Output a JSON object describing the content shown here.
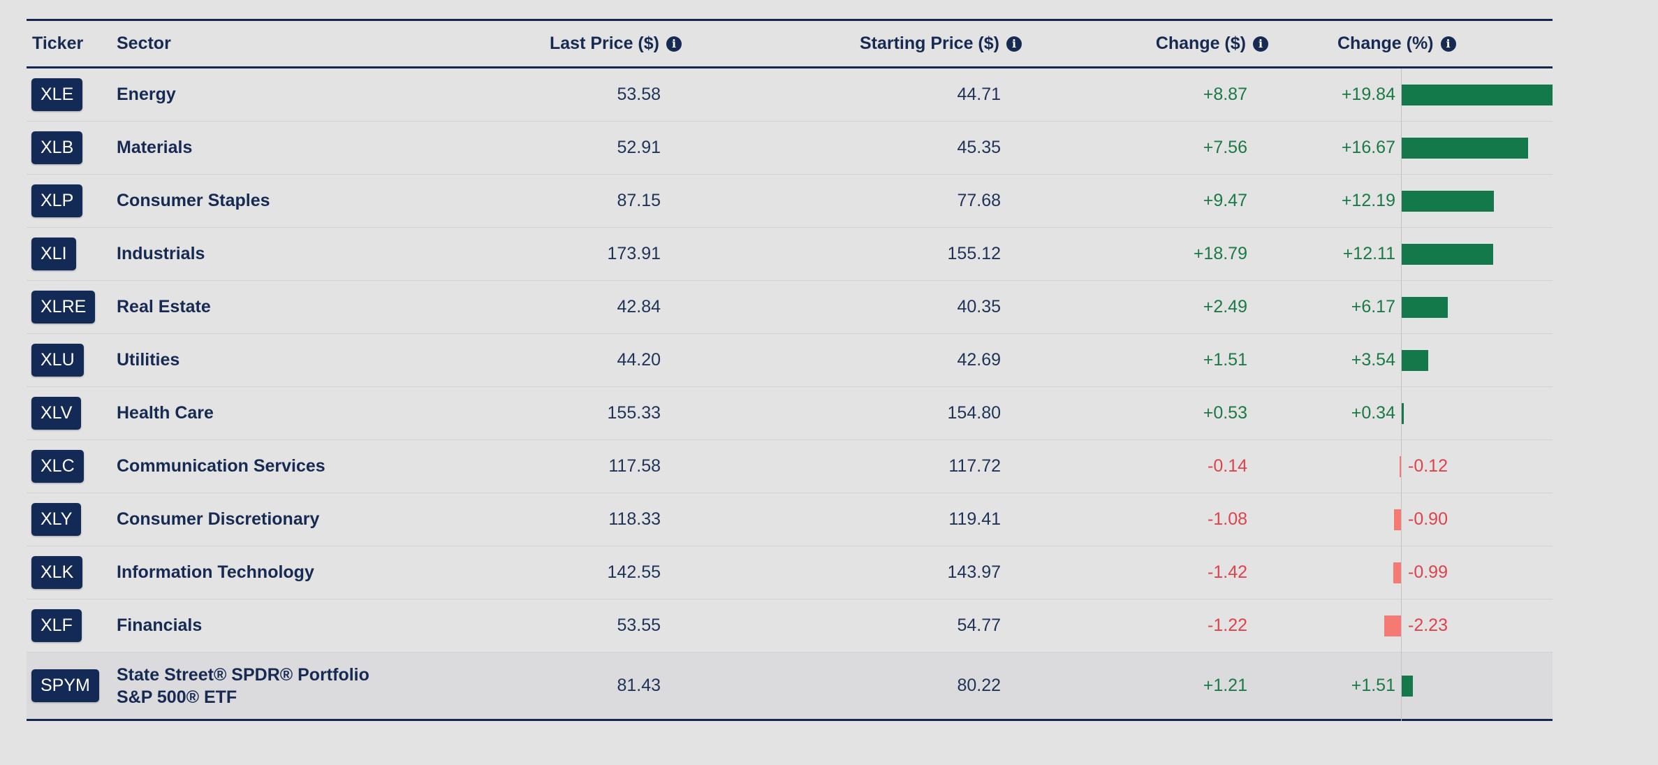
{
  "table": {
    "headers": {
      "ticker": "Ticker",
      "sector": "Sector",
      "last_price": "Last Price ($)",
      "starting_price": "Starting Price ($)",
      "change_abs": "Change ($)",
      "change_pct": "Change (%)"
    },
    "info_icon_glyph": "i",
    "max_abs_pct": 19.84,
    "rows": [
      {
        "ticker": "XLE",
        "sector": "Energy",
        "last": "53.58",
        "start": "44.71",
        "chg": "+8.87",
        "pct": "+19.84",
        "pct_value": 19.84
      },
      {
        "ticker": "XLB",
        "sector": "Materials",
        "last": "52.91",
        "start": "45.35",
        "chg": "+7.56",
        "pct": "+16.67",
        "pct_value": 16.67
      },
      {
        "ticker": "XLP",
        "sector": "Consumer Staples",
        "last": "87.15",
        "start": "77.68",
        "chg": "+9.47",
        "pct": "+12.19",
        "pct_value": 12.19
      },
      {
        "ticker": "XLI",
        "sector": "Industrials",
        "last": "173.91",
        "start": "155.12",
        "chg": "+18.79",
        "pct": "+12.11",
        "pct_value": 12.11
      },
      {
        "ticker": "XLRE",
        "sector": "Real Estate",
        "last": "42.84",
        "start": "40.35",
        "chg": "+2.49",
        "pct": "+6.17",
        "pct_value": 6.17
      },
      {
        "ticker": "XLU",
        "sector": "Utilities",
        "last": "44.20",
        "start": "42.69",
        "chg": "+1.51",
        "pct": "+3.54",
        "pct_value": 3.54
      },
      {
        "ticker": "XLV",
        "sector": "Health Care",
        "last": "155.33",
        "start": "154.80",
        "chg": "+0.53",
        "pct": "+0.34",
        "pct_value": 0.34
      },
      {
        "ticker": "XLC",
        "sector": "Communication Services",
        "last": "117.58",
        "start": "117.72",
        "chg": "-0.14",
        "pct": "-0.12",
        "pct_value": -0.12
      },
      {
        "ticker": "XLY",
        "sector": "Consumer Discretionary",
        "last": "118.33",
        "start": "119.41",
        "chg": "-1.08",
        "pct": "-0.90",
        "pct_value": -0.9
      },
      {
        "ticker": "XLK",
        "sector": "Information Technology",
        "last": "142.55",
        "start": "143.97",
        "chg": "-1.42",
        "pct": "-0.99",
        "pct_value": -0.99
      },
      {
        "ticker": "XLF",
        "sector": "Financials",
        "last": "53.55",
        "start": "54.77",
        "chg": "-1.22",
        "pct": "-2.23",
        "pct_value": -2.23
      },
      {
        "ticker": "SPYM",
        "sector": "State Street® SPDR® Portfolio S&P 500® ETF",
        "last": "81.43",
        "start": "80.22",
        "chg": "+1.21",
        "pct": "+1.51",
        "pct_value": 1.51,
        "highlight": true
      }
    ]
  },
  "colors": {
    "header_navy": "#14284f",
    "badge_bg": "#142a56",
    "positive": "#1a7a45",
    "negative": "#e0424b",
    "positive_bar": "#13794a",
    "negative_bar": "#f57a73",
    "page_bg": "#e3e3e3"
  }
}
